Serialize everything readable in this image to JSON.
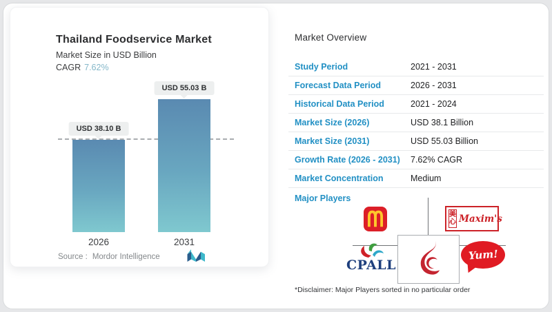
{
  "colors": {
    "accent_blue_label": "#2290c4",
    "bar_gradient_top": "#5a8ab1",
    "bar_gradient_bottom": "#7fc8cf",
    "cagr_value_blue": "#84b7c9",
    "mcdonalds_red": "#dc1f28",
    "mcdonalds_gold": "#ffc72c",
    "maxims_red": "#cc2127",
    "cpall_navy": "#1e3f7d",
    "yum_red": "#e01b23",
    "c_emblem_red": "#c42430"
  },
  "chart_card": {
    "title": "Thailand Foodservice Market",
    "subtitle": "Market Size in USD Billion",
    "cagr_label": "CAGR",
    "cagr_value": "7.62%",
    "source_label": "Source :",
    "source_value": "Mordor Intelligence"
  },
  "chart_data": {
    "type": "bar",
    "title": "Thailand Foodservice Market",
    "subtitle": "Market Size in USD Billion",
    "unit": "USD Billion",
    "cagr": "7.62%",
    "categories": [
      "2026",
      "2031"
    ],
    "values": [
      38.1,
      55.03
    ],
    "bar_labels": [
      "USD 38.10 B",
      "USD 55.03 B"
    ],
    "ylim": [
      0,
      55.03
    ],
    "dashline_at_value": 38.1,
    "grid": false,
    "legend": "none"
  },
  "overview": {
    "title": "Market Overview",
    "rows": [
      {
        "label": "Study Period",
        "value": "2021 - 2031"
      },
      {
        "label": "Forecast Data Period",
        "value": "2026 - 2031"
      },
      {
        "label": "Historical Data Period",
        "value": "2021 - 2024"
      },
      {
        "label": "Market Size (2026)",
        "value": "USD 38.1 Billion"
      },
      {
        "label": "Market Size (2031)",
        "value": "USD 55.03 Billion"
      },
      {
        "label": "Growth Rate (2026 - 2031)",
        "value": "7.62% CAGR"
      },
      {
        "label": "Market Concentration",
        "value": "Medium"
      }
    ],
    "major_players_label": "Major Players",
    "disclaimer": "*Disclaimer: Major Players sorted in no particular order"
  },
  "logos": {
    "maxims_cn_top": "美",
    "maxims_cn_bottom": "心",
    "maxims_script": "Maxim's",
    "cpall_text": "CPALL",
    "yum_text": "Yum!"
  }
}
